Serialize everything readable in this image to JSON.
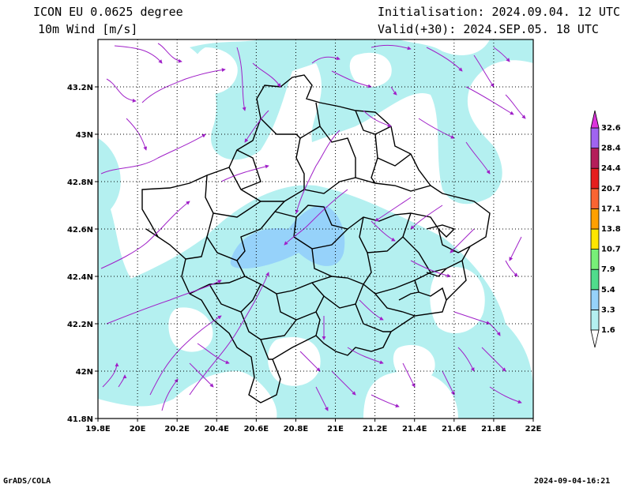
{
  "header": {
    "model": "ICON EU 0.0625 degree",
    "variable": "10m Wind [m/s]",
    "init": "Initialisation: 2024.09.04. 12 UTC",
    "valid": "Valid(+30): 2024.SEP.05. 18 UTC"
  },
  "footer": {
    "software": "GrADS/COLA",
    "timestamp": "2024-09-04-16:21"
  },
  "map": {
    "lon_range": [
      19.8,
      22.0
    ],
    "lat_range": [
      41.8,
      43.4
    ],
    "lon_ticks": [
      {
        "v": 19.8,
        "label": "19.8E"
      },
      {
        "v": 20.0,
        "label": "20E"
      },
      {
        "v": 20.2,
        "label": "20.2E"
      },
      {
        "v": 20.4,
        "label": "20.4E"
      },
      {
        "v": 20.6,
        "label": "20.6E"
      },
      {
        "v": 20.8,
        "label": "20.8E"
      },
      {
        "v": 21.0,
        "label": "21E"
      },
      {
        "v": 21.2,
        "label": "21.2E"
      },
      {
        "v": 21.4,
        "label": "21.4E"
      },
      {
        "v": 21.6,
        "label": "21.6E"
      },
      {
        "v": 21.8,
        "label": "21.8E"
      },
      {
        "v": 22.0,
        "label": "22E"
      }
    ],
    "lat_ticks": [
      {
        "v": 41.8,
        "label": "41.8N"
      },
      {
        "v": 42.0,
        "label": "42N"
      },
      {
        "v": 42.2,
        "label": "42.2N"
      },
      {
        "v": 42.4,
        "label": "42.4N"
      },
      {
        "v": 42.6,
        "label": "42.6N"
      },
      {
        "v": 42.8,
        "label": "42.8N"
      },
      {
        "v": 43.0,
        "label": "43N"
      },
      {
        "v": 43.2,
        "label": "43.2N"
      }
    ],
    "grid": "dotted",
    "fill_colors": {
      "level1": "#b4f0f0",
      "level2": "#96d2fa"
    },
    "border_color": "#000000",
    "streamline_color": "#a020c8"
  },
  "colorbar": {
    "levels": [
      {
        "label": "1.6",
        "color": "#b4f0f0"
      },
      {
        "label": "3.3",
        "color": "#96d2fa"
      },
      {
        "label": "5.4",
        "color": "#50dc8c"
      },
      {
        "label": "7.9",
        "color": "#78f078"
      },
      {
        "label": "10.7",
        "color": "#ffe600"
      },
      {
        "label": "13.8",
        "color": "#ffa000"
      },
      {
        "label": "17.1",
        "color": "#fa6432"
      },
      {
        "label": "20.7",
        "color": "#e61e1e"
      },
      {
        "label": "24.4",
        "color": "#b41e5a"
      },
      {
        "label": "28.4",
        "color": "#a064f0"
      },
      {
        "label": "32.6",
        "color": "#8c1edc"
      }
    ],
    "top_arrow_color": "#dc32dc"
  }
}
